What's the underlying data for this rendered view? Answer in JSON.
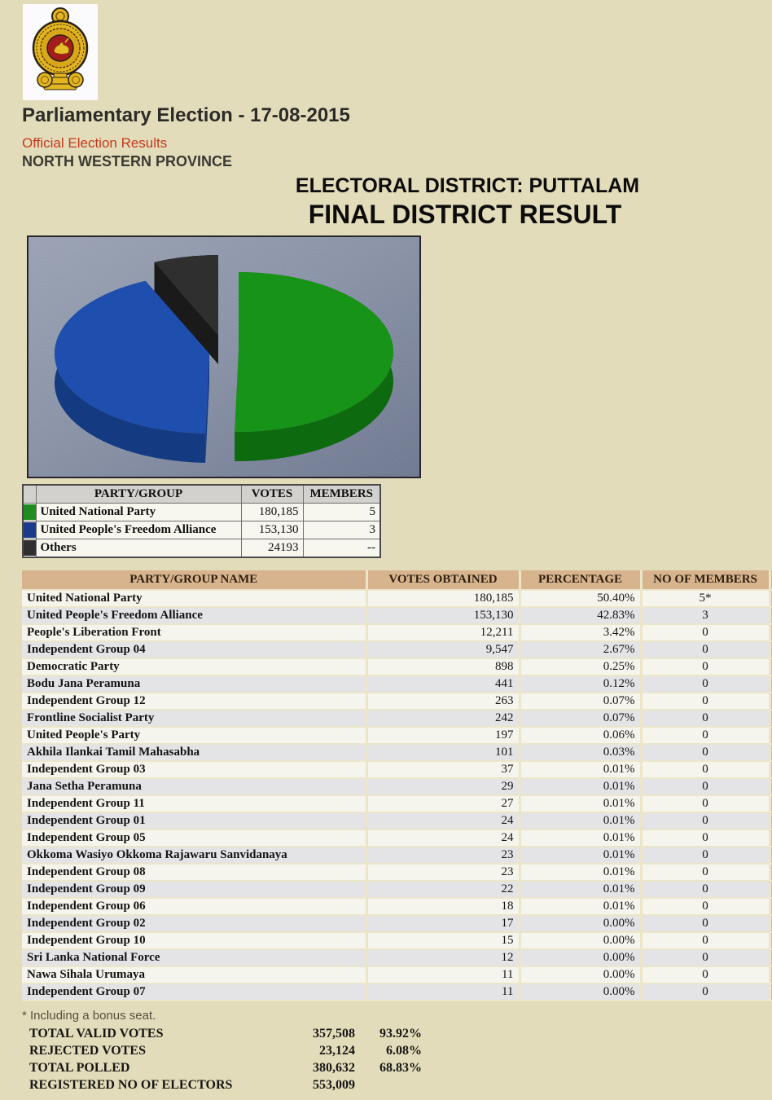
{
  "header": {
    "title": "Parliamentary Election - 17-08-2015",
    "subtitle": "Official Election Results",
    "subtitle_color": "#c23a1c",
    "region": "NORTH WESTERN PROVINCE"
  },
  "titles": {
    "district": "ELECTORAL DISTRICT: PUTTALAM",
    "result": "FINAL DISTRICT RESULT"
  },
  "chart_data": {
    "type": "pie",
    "style": "3d-exploded",
    "background": "#8b94a8",
    "legend_position": "table-below",
    "slices": [
      {
        "label": "United National Party",
        "votes": 180185,
        "percent": 50.4,
        "color": "#179317"
      },
      {
        "label": "United People's Freedom Alliance",
        "votes": 153130,
        "percent": 42.83,
        "color": "#1e4fae"
      },
      {
        "label": "Others",
        "votes": 24193,
        "percent": 6.77,
        "color": "#2f2f2f"
      }
    ]
  },
  "legend_table": {
    "headers": [
      "PARTY/GROUP",
      "VOTES",
      "MEMBERS"
    ],
    "rows": [
      {
        "color": "#1f8c1f",
        "party": "United National Party",
        "votes": "180,185",
        "members": "5"
      },
      {
        "color": "#1c3a8c",
        "party": "United People's Freedom Alliance",
        "votes": "153,130",
        "members": "3"
      },
      {
        "color": "#2f2f2f",
        "party": "Others",
        "votes": "24193",
        "members": "--"
      }
    ]
  },
  "results_table": {
    "headers": [
      "PARTY/GROUP NAME",
      "VOTES OBTAINED",
      "PERCENTAGE",
      "NO OF MEMBERS"
    ],
    "rows": [
      {
        "party": "United National Party",
        "votes": "180,185",
        "percent": "50.40%",
        "members": "5*"
      },
      {
        "party": "United People's Freedom Alliance",
        "votes": "153,130",
        "percent": "42.83%",
        "members": "3"
      },
      {
        "party": "People's Liberation Front",
        "votes": "12,211",
        "percent": "3.42%",
        "members": "0"
      },
      {
        "party": "Independent Group 04",
        "votes": "9,547",
        "percent": "2.67%",
        "members": "0"
      },
      {
        "party": "Democratic Party",
        "votes": "898",
        "percent": "0.25%",
        "members": "0"
      },
      {
        "party": "Bodu Jana Peramuna",
        "votes": "441",
        "percent": "0.12%",
        "members": "0"
      },
      {
        "party": "Independent Group 12",
        "votes": "263",
        "percent": "0.07%",
        "members": "0"
      },
      {
        "party": "Frontline Socialist Party",
        "votes": "242",
        "percent": "0.07%",
        "members": "0"
      },
      {
        "party": "United People's Party",
        "votes": "197",
        "percent": "0.06%",
        "members": "0"
      },
      {
        "party": "Akhila Ilankai Tamil Mahasabha",
        "votes": "101",
        "percent": "0.03%",
        "members": "0"
      },
      {
        "party": "Independent Group 03",
        "votes": "37",
        "percent": "0.01%",
        "members": "0"
      },
      {
        "party": "Jana Setha Peramuna",
        "votes": "29",
        "percent": "0.01%",
        "members": "0"
      },
      {
        "party": "Independent Group 11",
        "votes": "27",
        "percent": "0.01%",
        "members": "0"
      },
      {
        "party": "Independent Group 01",
        "votes": "24",
        "percent": "0.01%",
        "members": "0"
      },
      {
        "party": "Independent Group 05",
        "votes": "24",
        "percent": "0.01%",
        "members": "0"
      },
      {
        "party": "Okkoma Wasiyo Okkoma Rajawaru Sanvidanaya",
        "votes": "23",
        "percent": "0.01%",
        "members": "0"
      },
      {
        "party": "Independent Group 08",
        "votes": "23",
        "percent": "0.01%",
        "members": "0"
      },
      {
        "party": "Independent Group 09",
        "votes": "22",
        "percent": "0.01%",
        "members": "0"
      },
      {
        "party": "Independent Group 06",
        "votes": "18",
        "percent": "0.01%",
        "members": "0"
      },
      {
        "party": "Independent Group 02",
        "votes": "17",
        "percent": "0.00%",
        "members": "0"
      },
      {
        "party": "Independent Group 10",
        "votes": "15",
        "percent": "0.00%",
        "members": "0"
      },
      {
        "party": "Sri Lanka National Force",
        "votes": "12",
        "percent": "0.00%",
        "members": "0"
      },
      {
        "party": "Nawa Sihala Urumaya",
        "votes": "11",
        "percent": "0.00%",
        "members": "0"
      },
      {
        "party": "Independent Group 07",
        "votes": "11",
        "percent": "0.00%",
        "members": "0"
      }
    ]
  },
  "footnote": "* Including a bonus seat.",
  "totals": [
    {
      "label": "TOTAL VALID VOTES",
      "value": "357,508",
      "percent": "93.92%"
    },
    {
      "label": "REJECTED VOTES",
      "value": "23,124",
      "percent": "6.08%"
    },
    {
      "label": "TOTAL POLLED",
      "value": "380,632",
      "percent": "68.83%"
    },
    {
      "label": "REGISTERED NO OF ELECTORS",
      "value": "553,009",
      "percent": ""
    }
  ]
}
